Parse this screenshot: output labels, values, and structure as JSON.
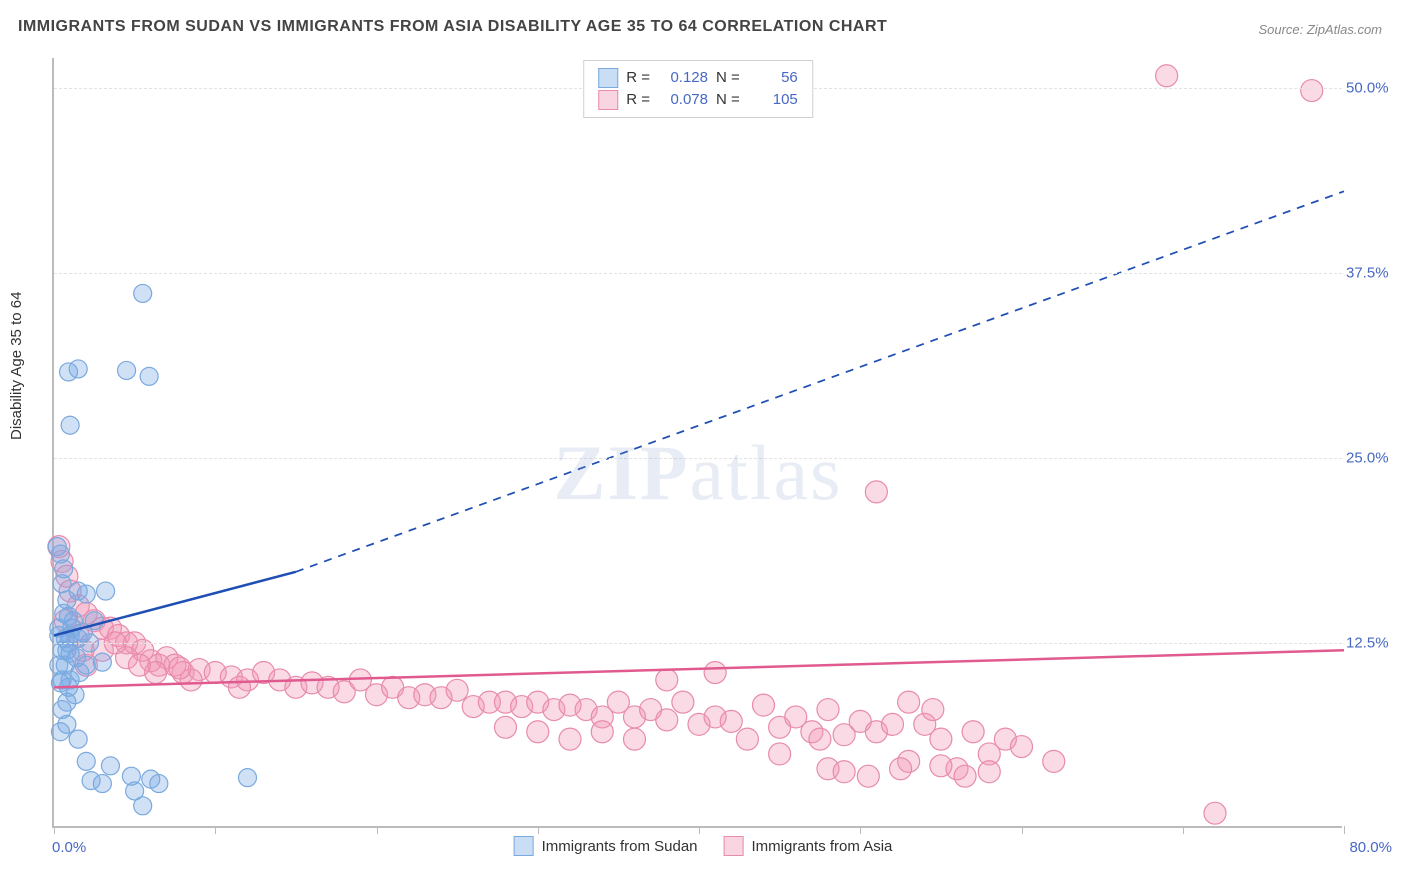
{
  "title": "IMMIGRANTS FROM SUDAN VS IMMIGRANTS FROM ASIA DISABILITY AGE 35 TO 64 CORRELATION CHART",
  "source": "Source: ZipAtlas.com",
  "ylabel": "Disability Age 35 to 64",
  "watermark_a": "ZIP",
  "watermark_b": "atlas",
  "chart": {
    "type": "scatter-with-regression",
    "background_color": "#ffffff",
    "grid_color": "#e2e2e2",
    "axis_color": "#bbbbbb",
    "ytick_color": "#4768c4",
    "xlim": [
      0,
      80
    ],
    "ylim": [
      0,
      52
    ],
    "xaxis_start_label": "0.0%",
    "xaxis_end_label": "80.0%",
    "yticks": [
      {
        "value": 12.5,
        "label": "12.5%"
      },
      {
        "value": 25.0,
        "label": "25.0%"
      },
      {
        "value": 37.5,
        "label": "37.5%"
      },
      {
        "value": 50.0,
        "label": "50.0%"
      }
    ],
    "xtick_positions_pct": [
      0,
      12.5,
      25,
      37.5,
      50,
      62.5,
      75,
      87.5,
      100
    ],
    "stats": {
      "series1": {
        "R_label": "R =",
        "R": "0.128",
        "N_label": "N =",
        "N": "56"
      },
      "series2": {
        "R_label": "R =",
        "R": "0.078",
        "N_label": "N =",
        "N": "105"
      }
    },
    "series": [
      {
        "id": "sudan",
        "name": "Immigrants from Sudan",
        "fill": "rgba(120,170,230,0.35)",
        "stroke": "#7aa9de",
        "marker_radius": 9,
        "line_color": "#1f4fb5",
        "line_width": 2.5,
        "regression": {
          "x1": 0,
          "y1": 13.0,
          "x2_solid": 15,
          "y2_solid": 17.3,
          "x2": 80,
          "y2": 43.0
        },
        "points": [
          [
            0.3,
            13.5
          ],
          [
            0.5,
            12.0
          ],
          [
            0.6,
            14.5
          ],
          [
            0.7,
            11.0
          ],
          [
            0.8,
            15.4
          ],
          [
            1.0,
            13.0
          ],
          [
            0.5,
            16.5
          ],
          [
            0.9,
            12.5
          ],
          [
            1.2,
            14.0
          ],
          [
            1.4,
            11.5
          ],
          [
            1.0,
            10.0
          ],
          [
            1.3,
            9.0
          ],
          [
            0.8,
            8.5
          ],
          [
            0.4,
            9.8
          ],
          [
            1.6,
            10.5
          ],
          [
            1.5,
            12.8
          ],
          [
            0.6,
            17.5
          ],
          [
            2.0,
            11.0
          ],
          [
            2.2,
            12.5
          ],
          [
            3.0,
            11.2
          ],
          [
            2.0,
            15.8
          ],
          [
            3.2,
            16.0
          ],
          [
            4.5,
            30.9
          ],
          [
            5.9,
            30.5
          ],
          [
            0.9,
            30.8
          ],
          [
            1.5,
            31.0
          ],
          [
            5.5,
            36.1
          ],
          [
            1.0,
            27.2
          ],
          [
            1.5,
            16.0
          ],
          [
            2.5,
            14.0
          ],
          [
            0.4,
            18.5
          ],
          [
            0.2,
            19.0
          ],
          [
            0.3,
            13.0
          ],
          [
            0.8,
            12.0
          ],
          [
            1.1,
            13.5
          ],
          [
            1.0,
            11.8
          ],
          [
            0.5,
            10.0
          ],
          [
            0.7,
            12.8
          ],
          [
            0.9,
            14.3
          ],
          [
            1.8,
            13.2
          ],
          [
            2.3,
            3.2
          ],
          [
            3.0,
            3.0
          ],
          [
            4.8,
            3.5
          ],
          [
            5.0,
            2.5
          ],
          [
            6.0,
            3.3
          ],
          [
            12.0,
            3.4
          ],
          [
            5.5,
            1.5
          ],
          [
            2.0,
            4.5
          ],
          [
            3.5,
            4.2
          ],
          [
            6.5,
            3.0
          ],
          [
            1.5,
            6.0
          ],
          [
            0.8,
            7.0
          ],
          [
            0.5,
            8.0
          ],
          [
            0.4,
            6.5
          ],
          [
            0.3,
            11.0
          ],
          [
            0.9,
            9.5
          ]
        ]
      },
      {
        "id": "asia",
        "name": "Immigrants from Asia",
        "fill": "rgba(240,150,180,0.35)",
        "stroke": "#e88bac",
        "marker_radius": 11,
        "line_color": "#e05a90",
        "line_width": 2.5,
        "regression": {
          "x1": 0,
          "y1": 9.5,
          "x2_solid": 80,
          "y2_solid": 12.0,
          "x2": 80,
          "y2": 12.0
        },
        "points": [
          [
            0.5,
            18.0
          ],
          [
            0.8,
            17.0
          ],
          [
            1.0,
            16.0
          ],
          [
            1.5,
            15.0
          ],
          [
            2.0,
            14.5
          ],
          [
            2.5,
            14.0
          ],
          [
            3.0,
            13.5
          ],
          [
            3.5,
            13.5
          ],
          [
            4.0,
            13.0
          ],
          [
            4.5,
            12.5
          ],
          [
            5.0,
            12.5
          ],
          [
            5.5,
            12.0
          ],
          [
            6.0,
            11.3
          ],
          [
            6.5,
            11.0
          ],
          [
            7.0,
            11.5
          ],
          [
            7.5,
            11.0
          ],
          [
            8.0,
            10.5
          ],
          [
            9.0,
            10.7
          ],
          [
            10.0,
            10.5
          ],
          [
            11.0,
            10.2
          ],
          [
            12.0,
            10.0
          ],
          [
            13.0,
            10.5
          ],
          [
            14.0,
            10.0
          ],
          [
            15.0,
            9.5
          ],
          [
            16.0,
            9.8
          ],
          [
            17.0,
            9.5
          ],
          [
            18.0,
            9.2
          ],
          [
            19.0,
            10.0
          ],
          [
            20.0,
            9.0
          ],
          [
            21.0,
            9.5
          ],
          [
            22.0,
            8.8
          ],
          [
            23.0,
            9.0
          ],
          [
            24.0,
            8.8
          ],
          [
            25.0,
            9.3
          ],
          [
            26.0,
            8.2
          ],
          [
            27.0,
            8.5
          ],
          [
            28.0,
            8.5
          ],
          [
            29.0,
            8.2
          ],
          [
            30.0,
            8.5
          ],
          [
            31.0,
            8.0
          ],
          [
            32.0,
            8.3
          ],
          [
            33.0,
            8.0
          ],
          [
            34.0,
            7.5
          ],
          [
            35.0,
            8.5
          ],
          [
            36.0,
            7.5
          ],
          [
            37.0,
            8.0
          ],
          [
            38.0,
            7.3
          ],
          [
            39.0,
            8.5
          ],
          [
            40.0,
            7.0
          ],
          [
            41.0,
            7.5
          ],
          [
            42.0,
            7.2
          ],
          [
            44.0,
            8.3
          ],
          [
            45.0,
            6.8
          ],
          [
            46.0,
            7.5
          ],
          [
            47.0,
            6.5
          ],
          [
            48.0,
            8.0
          ],
          [
            49.0,
            6.3
          ],
          [
            50.0,
            7.2
          ],
          [
            51.0,
            6.5
          ],
          [
            52.0,
            7.0
          ],
          [
            53.0,
            4.5
          ],
          [
            54.0,
            7.0
          ],
          [
            55.0,
            6.0
          ],
          [
            56.0,
            4.0
          ],
          [
            57.0,
            6.5
          ],
          [
            58.0,
            5.0
          ],
          [
            59.0,
            6.0
          ],
          [
            60.0,
            5.5
          ],
          [
            62.0,
            4.5
          ],
          [
            51.0,
            22.7
          ],
          [
            69.0,
            50.8
          ],
          [
            78.0,
            49.8
          ],
          [
            41.0,
            10.5
          ],
          [
            43.0,
            6.0
          ],
          [
            54.5,
            8.0
          ],
          [
            50.5,
            3.5
          ],
          [
            52.5,
            4.0
          ],
          [
            55.0,
            4.2
          ],
          [
            53.0,
            8.5
          ],
          [
            48.0,
            4.0
          ],
          [
            45.0,
            5.0
          ],
          [
            47.5,
            6.0
          ],
          [
            49.0,
            3.8
          ],
          [
            38.0,
            10.0
          ],
          [
            36.0,
            6.0
          ],
          [
            34.0,
            6.5
          ],
          [
            32.0,
            6.0
          ],
          [
            30.0,
            6.5
          ],
          [
            28.0,
            6.8
          ],
          [
            72.0,
            1.0
          ],
          [
            58.0,
            3.8
          ],
          [
            56.5,
            3.5
          ],
          [
            2.0,
            11.0
          ],
          [
            3.0,
            12.0
          ],
          [
            1.5,
            13.0
          ],
          [
            0.7,
            14.0
          ],
          [
            0.3,
            19.0
          ],
          [
            1.8,
            12.0
          ],
          [
            4.5,
            11.5
          ],
          [
            6.3,
            10.5
          ],
          [
            8.5,
            10.0
          ],
          [
            11.5,
            9.5
          ],
          [
            3.8,
            12.5
          ],
          [
            5.3,
            11.0
          ],
          [
            7.8,
            10.8
          ]
        ]
      }
    ],
    "bottom_legend": [
      {
        "swatch_fill": "rgba(120,170,230,0.4)",
        "swatch_stroke": "#7aa9de",
        "label_key": "series.0.name"
      },
      {
        "swatch_fill": "rgba(240,150,180,0.4)",
        "swatch_stroke": "#e88bac",
        "label_key": "series.1.name"
      }
    ]
  }
}
